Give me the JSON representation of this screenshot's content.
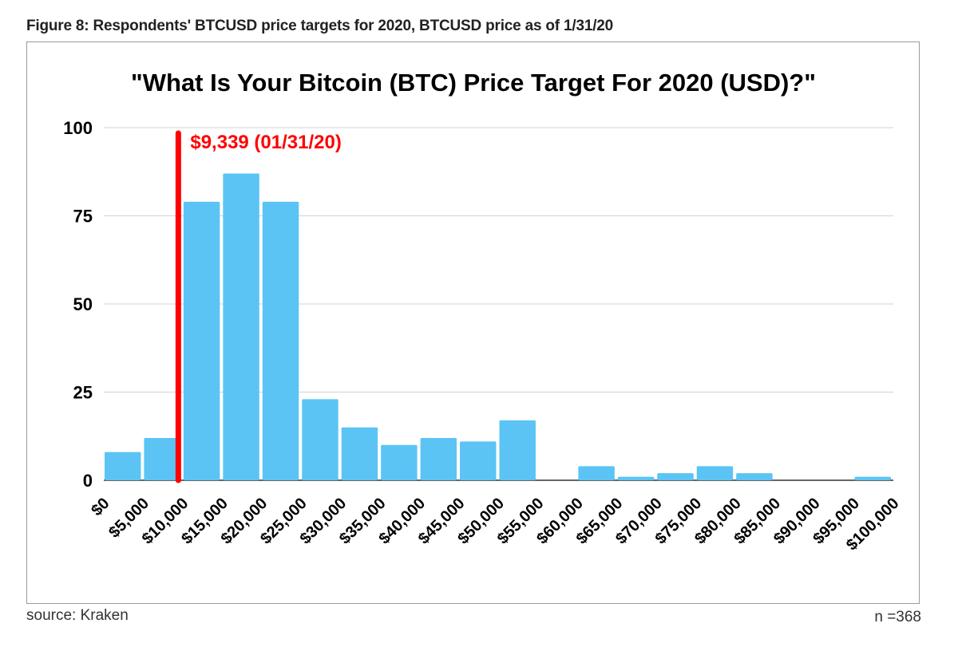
{
  "figure_caption": "Figure 8: Respondents' BTCUSD price targets for 2020, BTCUSD price as of 1/31/20",
  "source": "source: Kraken",
  "sample_size": "n =368",
  "colors": {
    "bar": "#5bc4f5",
    "marker": "#ff0000",
    "grid": "#d9d9d9"
  },
  "chart_data": {
    "type": "bar",
    "title": "\"What Is Your Bitcoin (BTC) Price Target For 2020 (USD)?\"",
    "xlabel": "",
    "ylabel": "",
    "ylim": [
      0,
      100
    ],
    "yticks": [
      0,
      25,
      50,
      75,
      100
    ],
    "grid": true,
    "x_tick_labels": [
      "$0",
      "$5,000",
      "$10,000",
      "$15,000",
      "$20,000",
      "$25,000",
      "$30,000",
      "$35,000",
      "$40,000",
      "$45,000",
      "$50,000",
      "$55,000",
      "$60,000",
      "$65,000",
      "$70,000",
      "$75,000",
      "$80,000",
      "$85,000",
      "$90,000",
      "$95,000",
      "$100,000"
    ],
    "bins": [
      {
        "from": 0,
        "to": 5000,
        "value": 8
      },
      {
        "from": 5000,
        "to": 10000,
        "value": 12
      },
      {
        "from": 10000,
        "to": 15000,
        "value": 79
      },
      {
        "from": 15000,
        "to": 20000,
        "value": 87
      },
      {
        "from": 20000,
        "to": 25000,
        "value": 79
      },
      {
        "from": 25000,
        "to": 30000,
        "value": 23
      },
      {
        "from": 30000,
        "to": 35000,
        "value": 15
      },
      {
        "from": 35000,
        "to": 40000,
        "value": 10
      },
      {
        "from": 40000,
        "to": 45000,
        "value": 12
      },
      {
        "from": 45000,
        "to": 50000,
        "value": 11
      },
      {
        "from": 50000,
        "to": 55000,
        "value": 17
      },
      {
        "from": 55000,
        "to": 60000,
        "value": 0
      },
      {
        "from": 60000,
        "to": 65000,
        "value": 4
      },
      {
        "from": 65000,
        "to": 70000,
        "value": 1
      },
      {
        "from": 70000,
        "to": 75000,
        "value": 2
      },
      {
        "from": 75000,
        "to": 80000,
        "value": 4
      },
      {
        "from": 80000,
        "to": 85000,
        "value": 2
      },
      {
        "from": 85000,
        "to": 90000,
        "value": 0
      },
      {
        "from": 90000,
        "to": 95000,
        "value": 0
      },
      {
        "from": 95000,
        "to": 100000,
        "value": 1
      }
    ],
    "annotation": {
      "x": 9339,
      "label": "$9,339 (01/31/20)"
    }
  }
}
